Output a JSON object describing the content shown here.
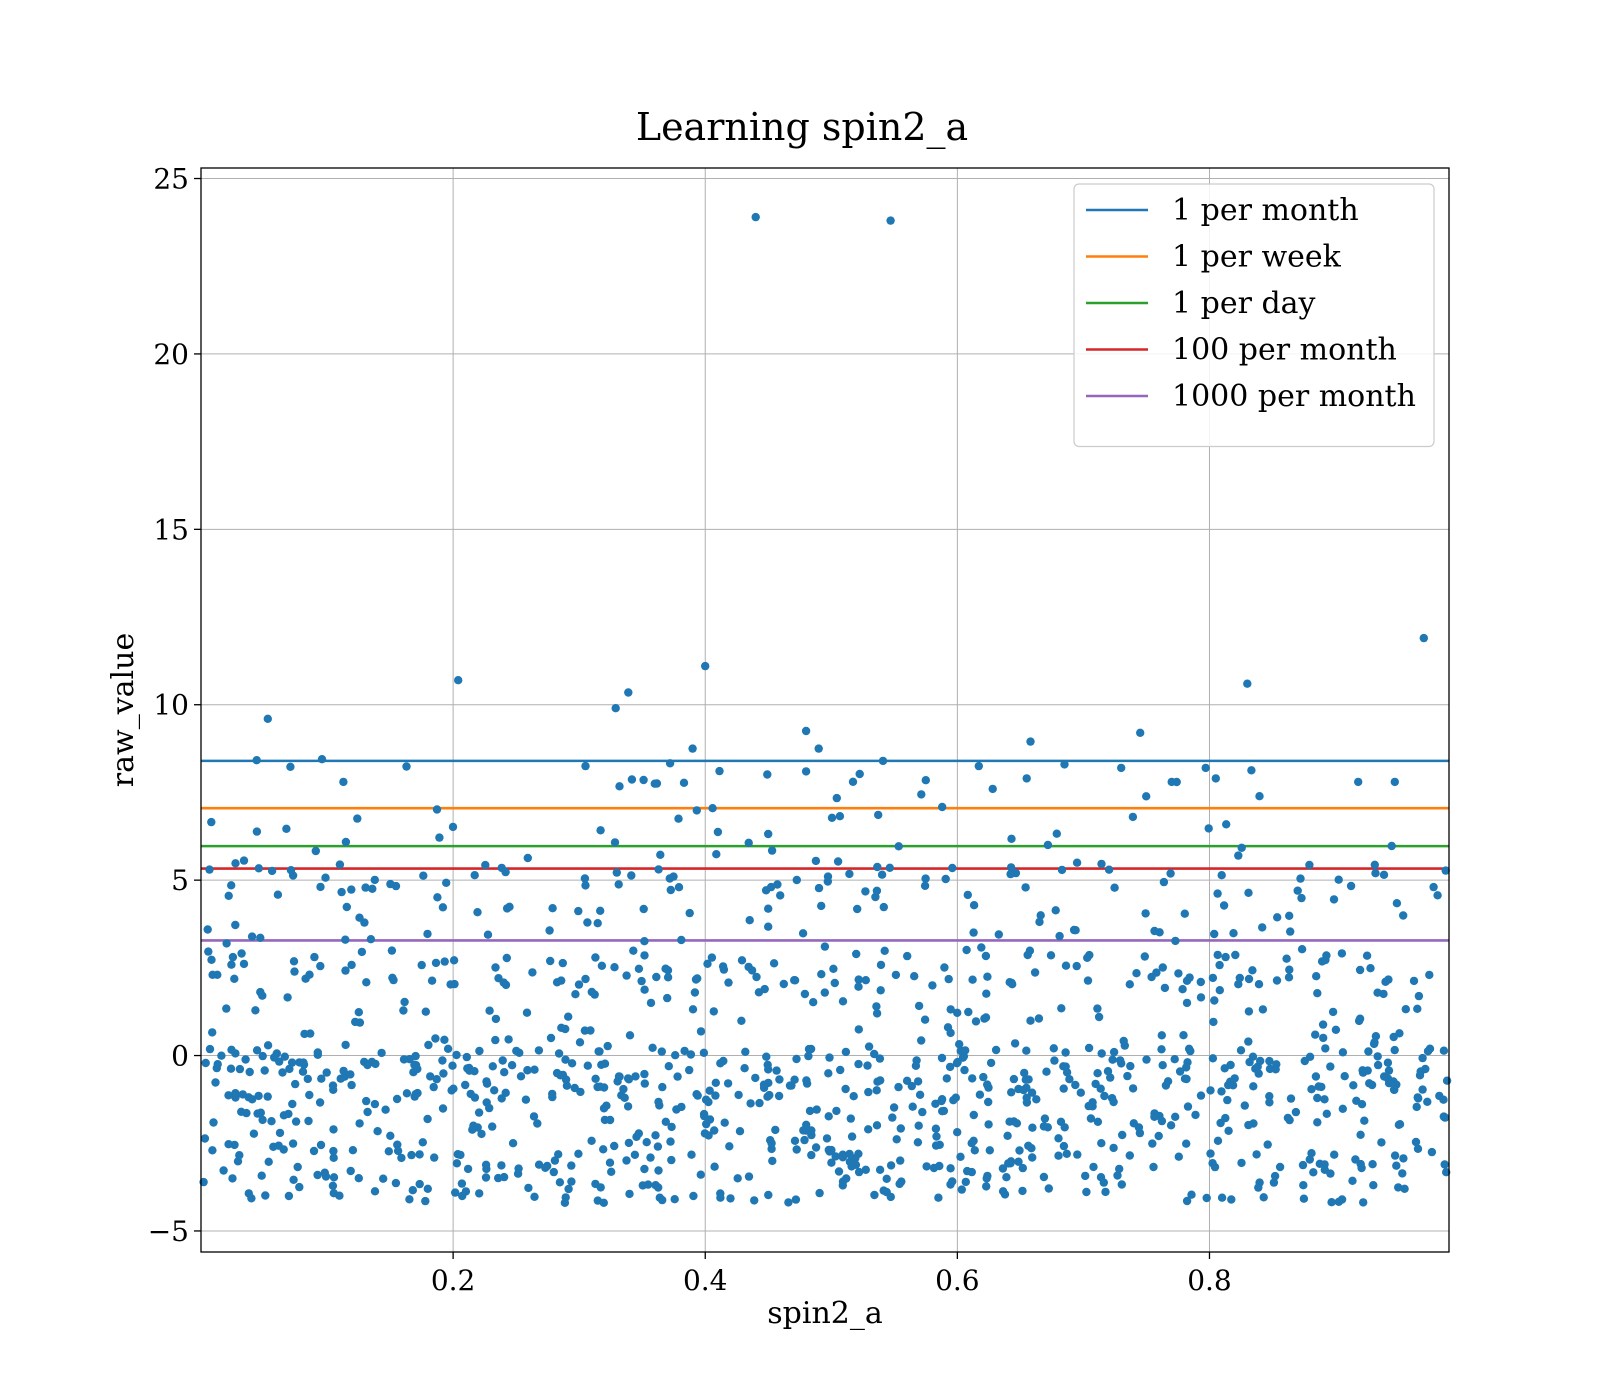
{
  "chart_data": {
    "type": "scatter",
    "title": "Learning spin2_a",
    "xlabel": "spin2_a",
    "ylabel": "raw_value",
    "xlim": [
      0.0,
      0.99
    ],
    "ylim": [
      -5.6,
      25.3
    ],
    "xticks": [
      0.2,
      0.4,
      0.6,
      0.8
    ],
    "xtick_labels": [
      "0.2",
      "0.4",
      "0.6",
      "0.8"
    ],
    "yticks": [
      -5,
      0,
      5,
      10,
      15,
      20,
      25
    ],
    "ytick_labels": [
      "−5",
      "0",
      "5",
      "10",
      "15",
      "20",
      "25"
    ],
    "grid": true,
    "legend_position": "top-right",
    "point_color": "#1f77b4",
    "lines": [
      {
        "name": "1 per month",
        "y": 8.4,
        "color": "#1f77b4"
      },
      {
        "name": "1 per week",
        "y": 7.05,
        "color": "#ff7f0e"
      },
      {
        "name": "1 per day",
        "y": 5.97,
        "color": "#2ca02c"
      },
      {
        "name": "100 per month",
        "y": 5.33,
        "color": "#d62728"
      },
      {
        "name": "1000 per month",
        "y": 3.28,
        "color": "#9467bd"
      }
    ],
    "outliers": [
      [
        0.44,
        23.9
      ],
      [
        0.547,
        23.8
      ],
      [
        0.97,
        11.9
      ],
      [
        0.4,
        11.1
      ],
      [
        0.204,
        10.7
      ],
      [
        0.83,
        10.6
      ],
      [
        0.339,
        10.35
      ],
      [
        0.329,
        9.9
      ],
      [
        0.053,
        9.6
      ],
      [
        0.48,
        9.25
      ],
      [
        0.745,
        9.2
      ],
      [
        0.658,
        8.95
      ],
      [
        0.49,
        8.75
      ],
      [
        0.39,
        8.75
      ],
      [
        0.541,
        8.4
      ],
      [
        0.685,
        8.3
      ],
      [
        0.305,
        8.25
      ],
      [
        0.617,
        8.25
      ],
      [
        0.797,
        8.2
      ],
      [
        0.73,
        8.2
      ],
      [
        0.48,
        8.1
      ],
      [
        0.805,
        7.9
      ],
      [
        0.655,
        7.9
      ],
      [
        0.575,
        7.85
      ],
      [
        0.918,
        7.8
      ],
      [
        0.947,
        7.8
      ],
      [
        0.113,
        7.8
      ],
      [
        0.36,
        7.75
      ],
      [
        0.77,
        7.8
      ],
      [
        0.628,
        7.6
      ]
    ],
    "point_count": 1200,
    "seed": 17
  }
}
